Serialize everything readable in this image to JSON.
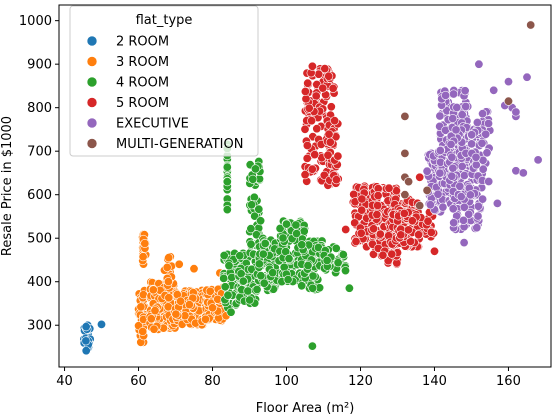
{
  "chart_data": {
    "type": "scatter",
    "xlabel": "Floor Area",
    "xlabel_unit": "(m²)",
    "ylabel": "Resale Price in $1000",
    "xlim": [
      38.5,
      171.5
    ],
    "ylim": [
      204,
      1036
    ],
    "xticks": [
      40,
      60,
      80,
      100,
      120,
      140,
      160
    ],
    "yticks": [
      300,
      400,
      500,
      600,
      700,
      800,
      900,
      1000
    ],
    "grid": false,
    "legend": {
      "title": "flat_type",
      "position": "upper-left"
    },
    "series": [
      {
        "name": "2 ROOM",
        "color": "#1f77b4",
        "clusters": [
          {
            "x": [
              45,
              47
            ],
            "y": [
              240,
              300
            ],
            "n": 30
          }
        ],
        "points": [
          [
            50,
            302
          ]
        ]
      },
      {
        "name": "3 ROOM",
        "color": "#ff7f0e",
        "clusters": [
          {
            "x": [
              60,
              62
            ],
            "y": [
              260,
              380
            ],
            "n": 40
          },
          {
            "x": [
              61,
              62
            ],
            "y": [
              440,
              510
            ],
            "n": 25
          },
          {
            "x": [
              63,
              70
            ],
            "y": [
              290,
              400
            ],
            "n": 140
          },
          {
            "x": [
              67,
              69
            ],
            "y": [
              400,
              470
            ],
            "n": 14
          },
          {
            "x": [
              70,
              78
            ],
            "y": [
              300,
              380
            ],
            "n": 130
          },
          {
            "x": [
              78,
              84
            ],
            "y": [
              310,
              390
            ],
            "n": 80
          }
        ],
        "points": [
          [
            82,
            420
          ],
          [
            80,
            340
          ],
          [
            75,
            430
          ],
          [
            71,
            440
          ],
          [
            85,
            400
          ]
        ]
      },
      {
        "name": "4 ROOM",
        "color": "#2ca02c",
        "clusters": [
          {
            "x": [
              84,
              84
            ],
            "y": [
              560,
              720
            ],
            "n": 25
          },
          {
            "x": [
              83,
              88
            ],
            "y": [
              340,
              470
            ],
            "n": 60
          },
          {
            "x": [
              87,
              92
            ],
            "y": [
              350,
              470
            ],
            "n": 60
          },
          {
            "x": [
              90,
              93
            ],
            "y": [
              480,
              680
            ],
            "n": 45
          },
          {
            "x": [
              92,
              98
            ],
            "y": [
              380,
              500
            ],
            "n": 90
          },
          {
            "x": [
              98,
              105
            ],
            "y": [
              400,
              540
            ],
            "n": 120
          },
          {
            "x": [
              104,
              110
            ],
            "y": [
              380,
              500
            ],
            "n": 80
          },
          {
            "x": [
              110,
              116
            ],
            "y": [
              420,
              480
            ],
            "n": 40
          }
        ],
        "points": [
          [
            107,
            252
          ],
          [
            117,
            385
          ],
          [
            93,
            540
          ],
          [
            85,
            330
          ],
          [
            131,
            510
          ]
        ]
      },
      {
        "name": "5 ROOM",
        "color": "#d62728",
        "clusters": [
          {
            "x": [
              105,
              113
            ],
            "y": [
              630,
              890
            ],
            "n": 130
          },
          {
            "x": [
              111,
              114
            ],
            "y": [
              620,
              770
            ],
            "n": 30
          },
          {
            "x": [
              118,
              124
            ],
            "y": [
              480,
              620
            ],
            "n": 110
          },
          {
            "x": [
              123,
              130
            ],
            "y": [
              440,
              620
            ],
            "n": 150
          },
          {
            "x": [
              128,
              136
            ],
            "y": [
              480,
              590
            ],
            "n": 110
          },
          {
            "x": [
              130,
              140
            ],
            "y": [
              500,
              560
            ],
            "n": 50
          }
        ],
        "points": [
          [
            107,
            895
          ],
          [
            113,
            770
          ],
          [
            116,
            520
          ],
          [
            136,
            640
          ],
          [
            140,
            470
          ],
          [
            134,
            540
          ]
        ]
      },
      {
        "name": "EXECUTIVE",
        "color": "#9467bd",
        "clusters": [
          {
            "x": [
              138,
              144
            ],
            "y": [
              560,
              700
            ],
            "n": 100
          },
          {
            "x": [
              141,
              149
            ],
            "y": [
              640,
              840
            ],
            "n": 140
          },
          {
            "x": [
              144,
              153
            ],
            "y": [
              560,
              760
            ],
            "n": 120
          },
          {
            "x": [
              145,
              152
            ],
            "y": [
              520,
              620
            ],
            "n": 50
          },
          {
            "x": [
              150,
              155
            ],
            "y": [
              620,
              800
            ],
            "n": 40
          }
        ],
        "points": [
          [
            160,
            860
          ],
          [
            165,
            870
          ],
          [
            162,
            655
          ],
          [
            164,
            650
          ],
          [
            168,
            680
          ],
          [
            162,
            780
          ],
          [
            161,
            800
          ],
          [
            156,
            840
          ],
          [
            159,
            805
          ],
          [
            152,
            900
          ],
          [
            157,
            580
          ],
          [
            153,
            590
          ],
          [
            148,
            490
          ],
          [
            162,
            790
          ]
        ]
      },
      {
        "name": "MULTI-GENERATION",
        "color": "#8c564b",
        "clusters": [],
        "points": [
          [
            166,
            990
          ],
          [
            160,
            815
          ],
          [
            132,
            780
          ],
          [
            132,
            695
          ],
          [
            132,
            640
          ],
          [
            138,
            610
          ],
          [
            136,
            575
          ],
          [
            132,
            600
          ],
          [
            133,
            630
          ]
        ]
      }
    ]
  }
}
